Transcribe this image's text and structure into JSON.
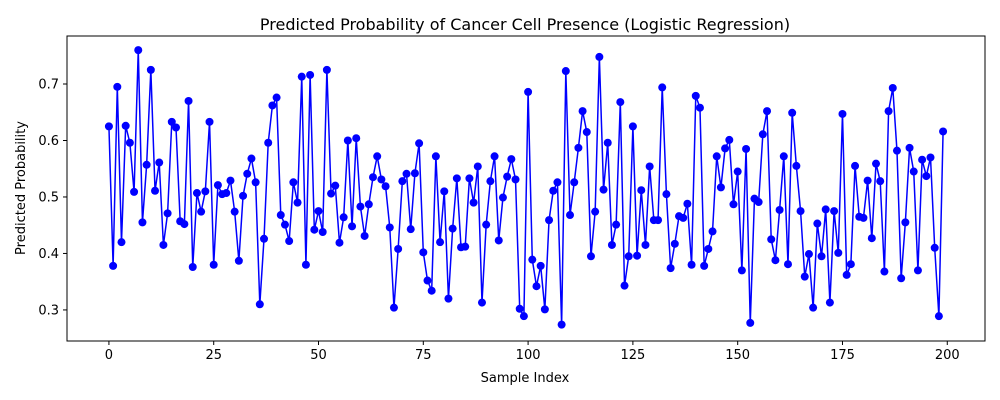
{
  "chart_data": {
    "type": "line",
    "title": "Predicted Probability of Cancer Cell Presence (Logistic Regression)",
    "xlabel": "Sample Index",
    "ylabel": "Predicted Probability",
    "xlim": [
      -10,
      209
    ],
    "ylim": [
      0.245,
      0.785
    ],
    "xticks": [
      0,
      25,
      50,
      75,
      100,
      125,
      150,
      175,
      200
    ],
    "yticks": [
      0.3,
      0.4,
      0.5,
      0.6,
      0.7
    ],
    "ytick_labels": [
      "0.3",
      "0.4",
      "0.5",
      "0.6",
      "0.7"
    ],
    "grid": false,
    "marker": "circle",
    "color": "#0000ff",
    "series": [
      {
        "x": [
          0,
          1,
          2,
          3,
          4,
          5,
          6,
          7,
          8,
          9,
          10,
          11,
          12,
          13,
          14,
          15,
          16,
          17,
          18,
          19,
          20,
          21,
          22,
          23,
          24,
          25,
          26,
          27,
          28,
          29,
          30,
          31,
          32,
          33,
          34,
          35,
          36,
          37,
          38,
          39,
          40,
          41,
          42,
          43,
          44,
          45,
          46,
          47,
          48,
          49,
          50,
          51,
          52,
          53,
          54,
          55,
          56,
          57,
          58,
          59,
          60,
          61,
          62,
          63,
          64,
          65,
          66,
          67,
          68,
          69,
          70,
          71,
          72,
          73,
          74,
          75,
          76,
          77,
          78,
          79,
          80,
          81,
          82,
          83,
          84,
          85,
          86,
          87,
          88,
          89,
          90,
          91,
          92,
          93,
          94,
          95,
          96,
          97,
          98,
          99,
          100,
          101,
          102,
          103,
          104,
          105,
          106,
          107,
          108,
          109,
          110,
          111,
          112,
          113,
          114,
          115,
          116,
          117,
          118,
          119,
          120,
          121,
          122,
          123,
          124,
          125,
          126,
          127,
          128,
          129,
          130,
          131,
          132,
          133,
          134,
          135,
          136,
          137,
          138,
          139,
          140,
          141,
          142,
          143,
          144,
          145,
          146,
          147,
          148,
          149,
          150,
          151,
          152,
          153,
          154,
          155,
          156,
          157,
          158,
          159,
          160,
          161,
          162,
          163,
          164,
          165,
          166,
          167,
          168,
          169,
          170,
          171,
          172,
          173,
          174,
          175,
          176,
          177,
          178,
          179,
          180,
          181,
          182,
          183,
          184,
          185,
          186,
          187,
          188,
          189,
          190,
          191,
          192,
          193,
          194,
          195,
          196,
          197,
          198,
          199
        ],
        "y": [
          0.625,
          0.378,
          0.695,
          0.42,
          0.626,
          0.596,
          0.509,
          0.76,
          0.455,
          0.557,
          0.725,
          0.511,
          0.561,
          0.415,
          0.471,
          0.633,
          0.623,
          0.457,
          0.452,
          0.67,
          0.376,
          0.507,
          0.474,
          0.51,
          0.633,
          0.38,
          0.521,
          0.505,
          0.507,
          0.529,
          0.474,
          0.387,
          0.502,
          0.541,
          0.568,
          0.526,
          0.31,
          0.426,
          0.596,
          0.662,
          0.676,
          0.468,
          0.451,
          0.422,
          0.526,
          0.49,
          0.713,
          0.38,
          0.716,
          0.442,
          0.475,
          0.438,
          0.725,
          0.506,
          0.52,
          0.419,
          0.464,
          0.6,
          0.448,
          0.604,
          0.483,
          0.431,
          0.487,
          0.535,
          0.572,
          0.531,
          0.519,
          0.446,
          0.304,
          0.408,
          0.528,
          0.541,
          0.443,
          0.542,
          0.595,
          0.402,
          0.352,
          0.334,
          0.572,
          0.42,
          0.51,
          0.32,
          0.444,
          0.533,
          0.411,
          0.412,
          0.533,
          0.49,
          0.554,
          0.313,
          0.451,
          0.528,
          0.572,
          0.423,
          0.499,
          0.536,
          0.567,
          0.531,
          0.302,
          0.289,
          0.686,
          0.389,
          0.342,
          0.378,
          0.301,
          0.459,
          0.511,
          0.526,
          0.274,
          0.723,
          0.468,
          0.526,
          0.587,
          0.652,
          0.615,
          0.395,
          0.474,
          0.748,
          0.513,
          0.596,
          0.415,
          0.451,
          0.668,
          0.343,
          0.395,
          0.625,
          0.396,
          0.512,
          0.415,
          0.554,
          0.459,
          0.459,
          0.694,
          0.505,
          0.374,
          0.417,
          0.466,
          0.463,
          0.488,
          0.38,
          0.679,
          0.658,
          0.378,
          0.408,
          0.439,
          0.572,
          0.517,
          0.586,
          0.601,
          0.487,
          0.545,
          0.37,
          0.585,
          0.277,
          0.497,
          0.491,
          0.611,
          0.652,
          0.425,
          0.388,
          0.477,
          0.572,
          0.381,
          0.649,
          0.555,
          0.475,
          0.359,
          0.399,
          0.304,
          0.453,
          0.395,
          0.478,
          0.313,
          0.475,
          0.401,
          0.647,
          0.362,
          0.381,
          0.555,
          0.465,
          0.463,
          0.529,
          0.427,
          0.559,
          0.528,
          0.368,
          0.652,
          0.693,
          0.582,
          0.356,
          0.455,
          0.587,
          0.545,
          0.37,
          0.566,
          0.537,
          0.57,
          0.41,
          0.289,
          0.616
        ]
      }
    ]
  }
}
